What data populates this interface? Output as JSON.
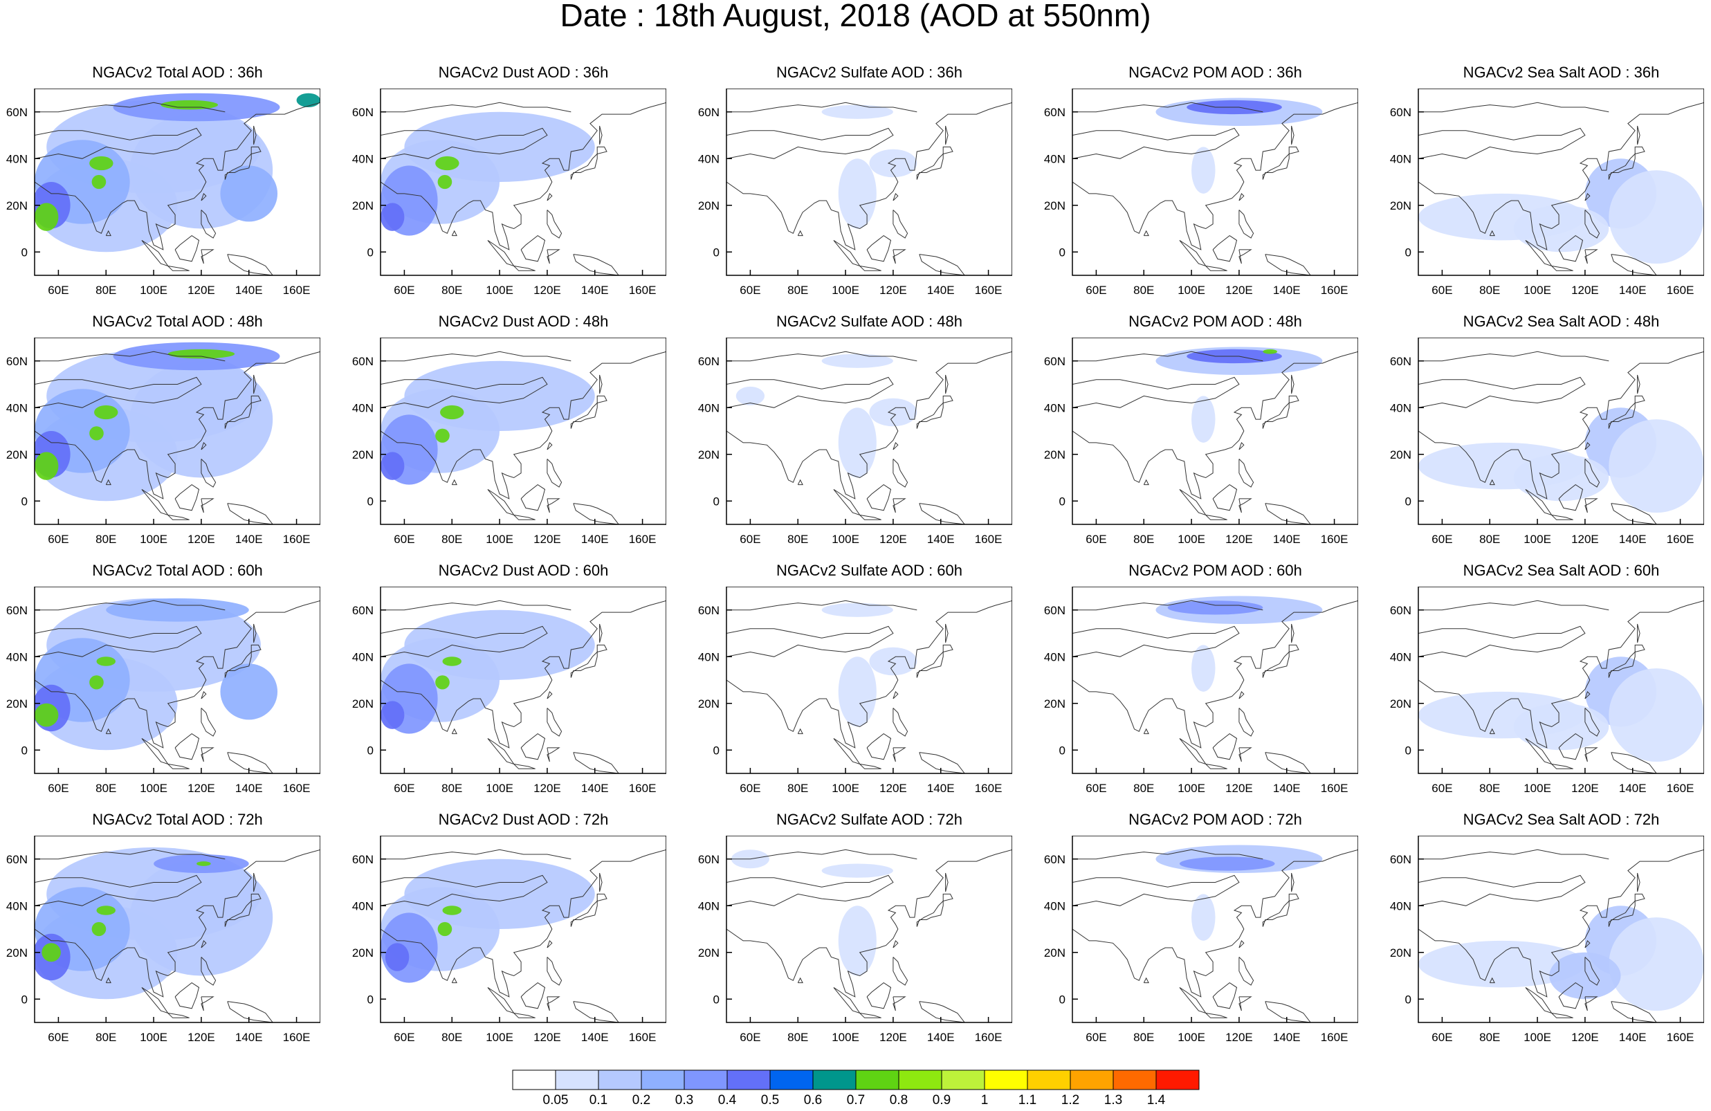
{
  "title": "Date : 18th August, 2018 (AOD at 550nm)",
  "rows": [
    "36h",
    "48h",
    "60h",
    "72h"
  ],
  "panels": [
    [
      {
        "title": "NGACv2 Total AOD : 36h",
        "species": "total"
      },
      {
        "title": "NGACv2 Dust AOD : 36h",
        "species": "dust"
      },
      {
        "title": "NGACv2 Sulfate AOD : 36h",
        "species": "sulfate"
      },
      {
        "title": "NGACv2 POM AOD : 36h",
        "species": "pom"
      },
      {
        "title": "NGACv2 Sea Salt AOD : 36h",
        "species": "seasalt"
      }
    ],
    [
      {
        "title": "NGACv2 Total AOD : 48h",
        "species": "total"
      },
      {
        "title": "NGACv2 Dust AOD : 48h",
        "species": "dust"
      },
      {
        "title": "NGACv2 Sulfate AOD : 48h",
        "species": "sulfate"
      },
      {
        "title": "NGACv2 POM AOD : 48h",
        "species": "pom"
      },
      {
        "title": "NGACv2 Sea Salt AOD : 48h",
        "species": "seasalt"
      }
    ],
    [
      {
        "title": "NGACv2 Total AOD : 60h",
        "species": "total"
      },
      {
        "title": "NGACv2 Dust AOD : 60h",
        "species": "dust"
      },
      {
        "title": "NGACv2 Sulfate AOD : 60h",
        "species": "sulfate"
      },
      {
        "title": "NGACv2 POM AOD : 60h",
        "species": "pom"
      },
      {
        "title": "NGACv2 Sea Salt AOD : 60h",
        "species": "seasalt"
      }
    ],
    [
      {
        "title": "NGACv2 Total AOD : 72h",
        "species": "total"
      },
      {
        "title": "NGACv2 Dust AOD : 72h",
        "species": "dust"
      },
      {
        "title": "NGACv2 Sulfate AOD : 72h",
        "species": "sulfate"
      },
      {
        "title": "NGACv2 POM AOD : 72h",
        "species": "pom"
      },
      {
        "title": "NGACv2 Sea Salt  AOD : 72h",
        "species": "seasalt"
      }
    ]
  ],
  "map": {
    "lon_range": [
      50,
      170
    ],
    "lat_range": [
      -10,
      70
    ],
    "lon_ticks": [
      60,
      80,
      100,
      120,
      140,
      160
    ],
    "lon_tick_labels": [
      "60E",
      "80E",
      "100E",
      "120E",
      "140E",
      "160E"
    ],
    "lat_ticks": [
      0,
      20,
      40,
      60
    ],
    "lat_tick_labels": [
      "0",
      "20N",
      "40N",
      "60N"
    ]
  },
  "colorbar": {
    "levels": [
      "0.05",
      "0.1",
      "0.2",
      "0.3",
      "0.4",
      "0.5",
      "0.6",
      "0.7",
      "0.8",
      "0.9",
      "1",
      "1.1",
      "1.2",
      "1.3",
      "1.4"
    ],
    "colors": [
      "#ffffff",
      "#d6e2ff",
      "#b5c9ff",
      "#8fb0ff",
      "#7f96ff",
      "#6370f8",
      "#0065f0",
      "#00968c",
      "#5fd313",
      "#8ee810",
      "#bdf23a",
      "#ffff00",
      "#ffd000",
      "#ffa300",
      "#ff6a00",
      "#ff1a00"
    ]
  }
}
